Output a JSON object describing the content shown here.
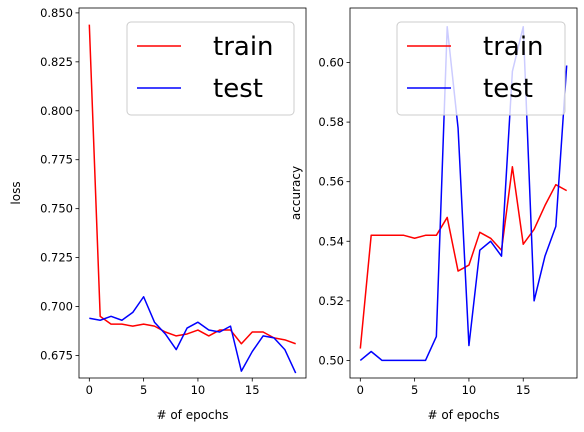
{
  "chart_data": [
    {
      "type": "line",
      "xlabel": "# of epochs",
      "ylabel": "loss",
      "xlim": [
        -0.95,
        19.95
      ],
      "ylim": [
        0.6635,
        0.8525
      ],
      "xticks": [
        0,
        5,
        10,
        15
      ],
      "yticks": [
        0.675,
        0.7,
        0.725,
        0.75,
        0.775,
        0.8,
        0.825,
        0.85
      ],
      "ytick_labels": [
        "0.675",
        "0.700",
        "0.725",
        "0.750",
        "0.775",
        "0.800",
        "0.825",
        "0.850"
      ],
      "grid": false,
      "legend_position": "upper-right",
      "x": [
        0,
        1,
        2,
        3,
        4,
        5,
        6,
        7,
        8,
        9,
        10,
        11,
        12,
        13,
        14,
        15,
        16,
        17,
        18,
        19
      ],
      "series": [
        {
          "name": "train",
          "color": "#ff0000",
          "values": [
            0.844,
            0.695,
            0.691,
            0.691,
            0.69,
            0.691,
            0.69,
            0.687,
            0.685,
            0.686,
            0.688,
            0.685,
            0.688,
            0.688,
            0.681,
            0.687,
            0.687,
            0.684,
            0.683,
            0.681
          ]
        },
        {
          "name": "test",
          "color": "#0000ff",
          "values": [
            0.694,
            0.693,
            0.695,
            0.693,
            0.697,
            0.705,
            0.692,
            0.686,
            0.678,
            0.689,
            0.692,
            0.688,
            0.687,
            0.69,
            0.667,
            0.677,
            0.685,
            0.684,
            0.678,
            0.666
          ]
        }
      ]
    },
    {
      "type": "line",
      "xlabel": "# of epochs",
      "ylabel": "accuracy",
      "xlim": [
        -0.95,
        19.95
      ],
      "ylim": [
        0.4941,
        0.6183
      ],
      "xticks": [
        0,
        5,
        10,
        15
      ],
      "yticks": [
        0.5,
        0.52,
        0.54,
        0.56,
        0.58,
        0.6
      ],
      "ytick_labels": [
        "0.50",
        "0.52",
        "0.54",
        "0.56",
        "0.58",
        "0.60"
      ],
      "grid": false,
      "legend_position": "upper-right",
      "x": [
        0,
        1,
        2,
        3,
        4,
        5,
        6,
        7,
        8,
        9,
        10,
        11,
        12,
        13,
        14,
        15,
        16,
        17,
        18,
        19
      ],
      "series": [
        {
          "name": "train",
          "color": "#ff0000",
          "values": [
            0.504,
            0.542,
            0.542,
            0.542,
            0.542,
            0.541,
            0.542,
            0.542,
            0.548,
            0.53,
            0.532,
            0.543,
            0.541,
            0.537,
            0.565,
            0.539,
            0.544,
            0.552,
            0.559,
            0.557
          ]
        },
        {
          "name": "test",
          "color": "#0000ff",
          "values": [
            0.5,
            0.503,
            0.5,
            0.5,
            0.5,
            0.5,
            0.5,
            0.508,
            0.612,
            0.578,
            0.505,
            0.537,
            0.54,
            0.535,
            0.597,
            0.612,
            0.52,
            0.535,
            0.545,
            0.599
          ]
        }
      ]
    }
  ]
}
